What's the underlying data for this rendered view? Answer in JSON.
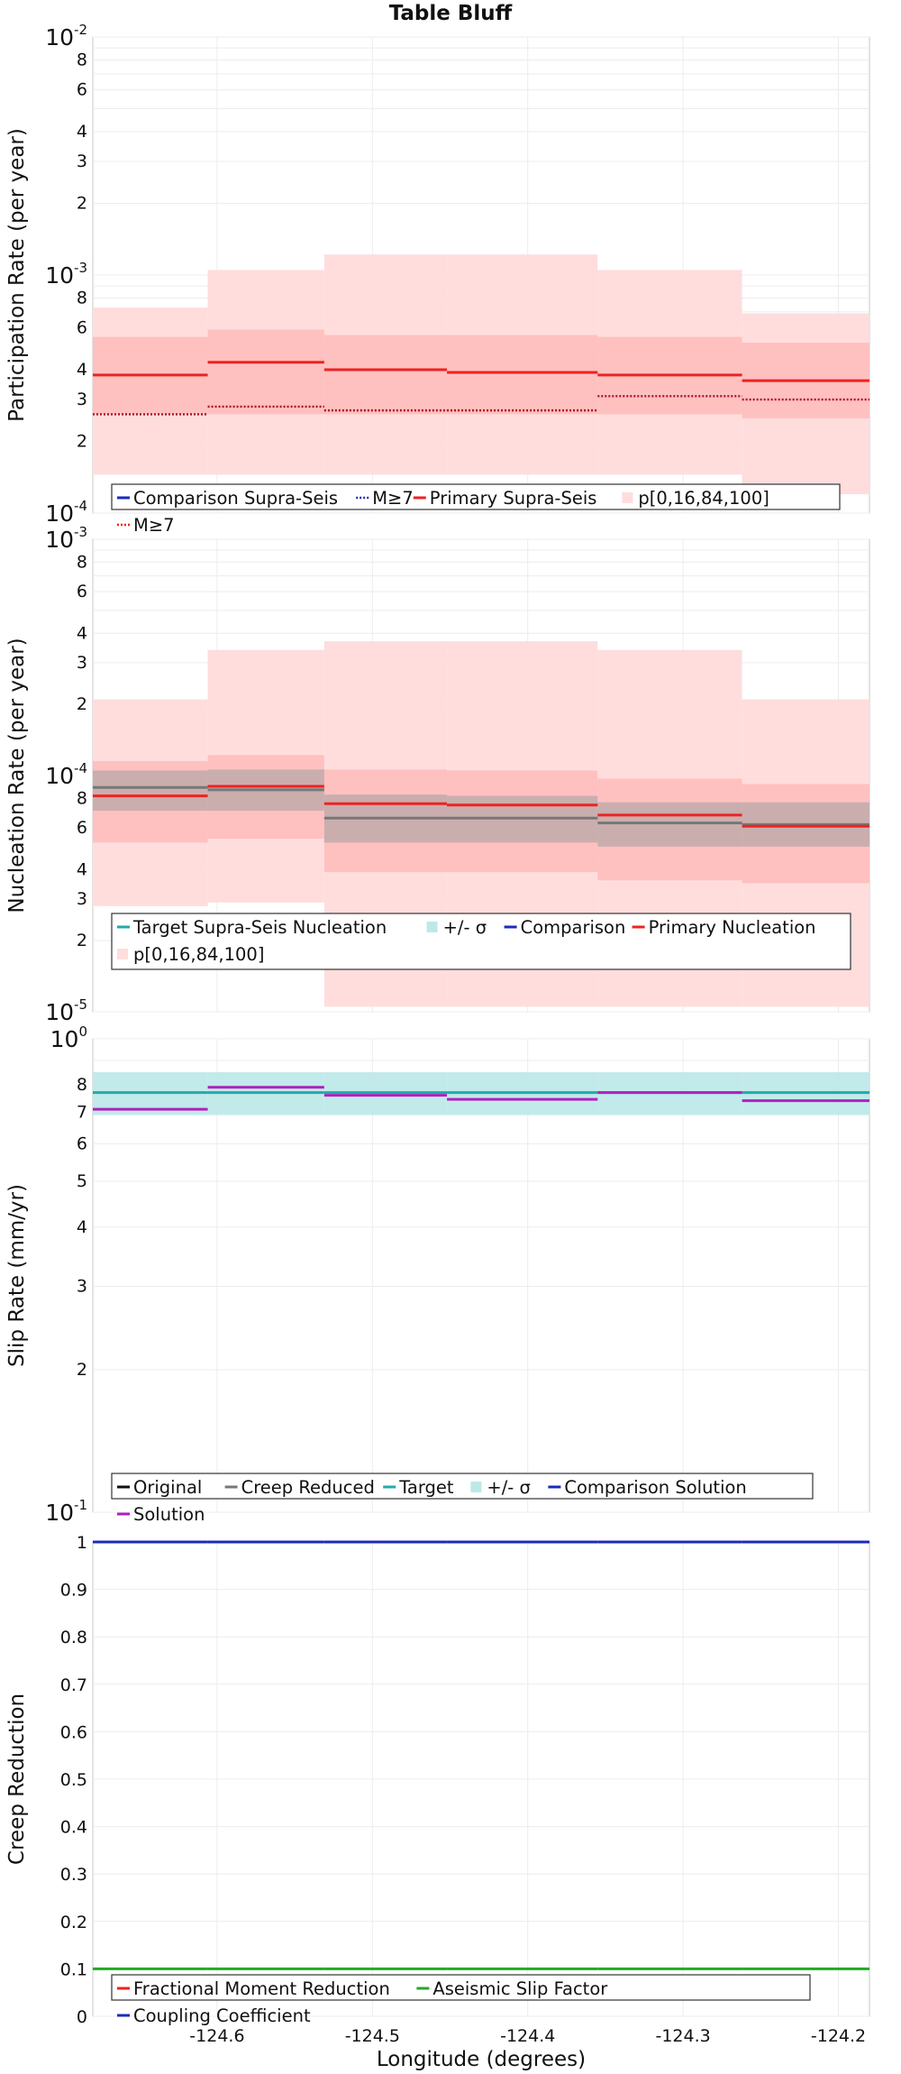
{
  "title": "Table Bluff",
  "colors": {
    "band_outer": "#ffdddd",
    "band_inner": "#ffbbbb",
    "primary": "#ee2222",
    "primary_m7": "#aa1122",
    "comparison": "#1a2bbb",
    "target": "#22aaaa",
    "target_band": "#bde8e8",
    "gray": "#777777",
    "solution": "#b020c0",
    "green": "#22aa22"
  },
  "x_axis": {
    "label": "Longitude (degrees)",
    "xlim": [
      -124.68,
      -124.18
    ],
    "ticks": [
      -124.6,
      -124.5,
      -124.4,
      -124.3,
      -124.2
    ],
    "tick_labels": [
      "-124.6",
      "-124.5",
      "-124.4",
      "-124.3",
      "-124.2"
    ]
  },
  "segment_edges": [
    -124.68,
    -124.606,
    -124.531,
    -124.452,
    -124.355,
    -124.262,
    -124.18
  ],
  "chart_data": [
    {
      "type": "line",
      "title": "Table Bluff",
      "ylabel": "Participation Rate (per year)",
      "yscale": "log",
      "ylim": [
        0.0001,
        0.01
      ],
      "y_major_labels": [
        {
          "mant": "10",
          "exp": "-2"
        },
        {
          "mant": "10",
          "exp": "-3"
        },
        {
          "mant": "10",
          "exp": "-4"
        }
      ],
      "y_minor_labels": [
        "8",
        "6",
        "4",
        "3",
        "2"
      ],
      "bands": [
        {
          "name": "p[0,16,84,100]",
          "kind": "outer",
          "lower": [
            0.000145,
            0.000145,
            0.000145,
            0.000145,
            0.000145,
            0.00012
          ],
          "upper": [
            0.00073,
            0.00105,
            0.00122,
            0.00122,
            0.00105,
            0.00069
          ]
        },
        {
          "name": "p[0,16,84,100]",
          "kind": "inner",
          "lower": [
            0.00026,
            0.00026,
            0.00026,
            0.00026,
            0.00026,
            0.00025
          ],
          "upper": [
            0.00055,
            0.00059,
            0.00056,
            0.00056,
            0.00055,
            0.00052
          ]
        }
      ],
      "series": [
        {
          "name": "Primary Supra-Seis",
          "style": "solid",
          "color_key": "primary",
          "values": [
            0.00038,
            0.00043,
            0.0004,
            0.00039,
            0.00038,
            0.00036
          ]
        },
        {
          "name": "M≥7",
          "style": "dotted",
          "color_key": "primary_m7",
          "values": [
            0.00026,
            0.00028,
            0.00027,
            0.00027,
            0.00031,
            0.0003
          ]
        }
      ],
      "legend": [
        {
          "label": "Comparison Supra-Seis",
          "swatch": "line",
          "color_key": "comparison"
        },
        {
          "label": "M≥7",
          "swatch": "dotted",
          "color_key": "comparison"
        },
        {
          "label": "Primary Supra-Seis",
          "swatch": "line",
          "color_key": "primary"
        },
        {
          "label": "p[0,16,84,100]",
          "swatch": "box",
          "color_key": "band_outer"
        },
        {
          "label": "M≥7",
          "swatch": "dotted",
          "color_key": "primary"
        }
      ]
    },
    {
      "type": "line",
      "ylabel": "Nucleation Rate (per year)",
      "yscale": "log",
      "ylim": [
        1e-05,
        0.001
      ],
      "y_major_labels": [
        {
          "mant": "10",
          "exp": "-3"
        },
        {
          "mant": "10",
          "exp": "-4"
        },
        {
          "mant": "10",
          "exp": "-5"
        }
      ],
      "y_minor_labels": [
        "8",
        "6",
        "4",
        "3",
        "2"
      ],
      "bands": [
        {
          "name": "p[0,16,84,100]",
          "kind": "outer",
          "lower": [
            2.8e-05,
            2.9e-05,
            1.05e-05,
            1.05e-05,
            1.05e-05,
            1.05e-05
          ],
          "upper": [
            0.00021,
            0.00034,
            0.00037,
            0.00037,
            0.00034,
            0.00021
          ]
        },
        {
          "name": "p[0,16,84,100]",
          "kind": "inner",
          "lower": [
            5.2e-05,
            5.4e-05,
            3.9e-05,
            3.9e-05,
            3.6e-05,
            3.5e-05
          ],
          "upper": [
            0.000115,
            0.000122,
            0.000106,
            0.000105,
            9.7e-05,
            9.2e-05
          ]
        },
        {
          "name": "+/- σ",
          "kind": "gray",
          "lower": [
            7.1e-05,
            7.1e-05,
            5.2e-05,
            5.2e-05,
            5e-05,
            5e-05
          ],
          "upper": [
            0.000105,
            0.000106,
            8.3e-05,
            8.2e-05,
            7.7e-05,
            7.7e-05
          ]
        }
      ],
      "series": [
        {
          "name": "Target Supra-Seis Nucleation",
          "style": "solid",
          "color_key": "gray",
          "values": [
            8.9e-05,
            8.7e-05,
            6.6e-05,
            6.6e-05,
            6.3e-05,
            6.2e-05
          ]
        },
        {
          "name": "Primary Nucleation",
          "style": "solid",
          "color_key": "primary",
          "values": [
            8.2e-05,
            9e-05,
            7.6e-05,
            7.5e-05,
            6.8e-05,
            6.1e-05
          ]
        }
      ],
      "legend": [
        {
          "label": "Target Supra-Seis Nucleation",
          "swatch": "line",
          "color_key": "target"
        },
        {
          "label": "+/- σ",
          "swatch": "box",
          "color_key": "target_band"
        },
        {
          "label": "Comparison",
          "swatch": "line",
          "color_key": "comparison"
        },
        {
          "label": "Primary Nucleation",
          "swatch": "line",
          "color_key": "primary"
        },
        {
          "label": "p[0,16,84,100]",
          "swatch": "box",
          "color_key": "band_outer"
        }
      ]
    },
    {
      "type": "line",
      "ylabel": "Slip Rate (mm/yr)",
      "yscale": "log",
      "ylim": [
        0.1,
        1
      ],
      "y_major_labels": [
        {
          "mant": "10",
          "exp": "0"
        },
        {
          "mant": "10",
          "exp": "-1"
        }
      ],
      "y_minor_labels": [
        "8",
        "7",
        "6",
        "5",
        "4",
        "3",
        "2"
      ],
      "bands": [
        {
          "name": "+/- σ",
          "kind": "target",
          "lower": [
            0.69,
            0.69,
            0.69,
            0.69,
            0.69,
            0.69
          ],
          "upper": [
            0.85,
            0.85,
            0.85,
            0.85,
            0.85,
            0.85
          ]
        }
      ],
      "series": [
        {
          "name": "Target",
          "style": "solid",
          "color_key": "target",
          "values": [
            0.77,
            0.77,
            0.77,
            0.77,
            0.77,
            0.77
          ]
        },
        {
          "name": "Solution",
          "style": "solid",
          "color_key": "solution",
          "values": [
            0.71,
            0.79,
            0.76,
            0.745,
            0.77,
            0.74
          ]
        }
      ],
      "legend": [
        {
          "label": "Original",
          "swatch": "line",
          "color_key": "black"
        },
        {
          "label": "Creep Reduced",
          "swatch": "line",
          "color_key": "gray"
        },
        {
          "label": "Target",
          "swatch": "line",
          "color_key": "target"
        },
        {
          "label": "+/- σ",
          "swatch": "box",
          "color_key": "target_band"
        },
        {
          "label": "Comparison Solution",
          "swatch": "line",
          "color_key": "comparison"
        },
        {
          "label": "Solution",
          "swatch": "line",
          "color_key": "solution"
        }
      ]
    },
    {
      "type": "line",
      "ylabel": "Creep Reduction",
      "yscale": "linear",
      "ylim": [
        0,
        1
      ],
      "y_ticks": [
        0,
        0.1,
        0.2,
        0.3,
        0.4,
        0.5,
        0.6,
        0.7,
        0.8,
        0.9,
        1
      ],
      "y_tick_labels": [
        "0",
        "0.1",
        "0.2",
        "0.3",
        "0.4",
        "0.5",
        "0.6",
        "0.7",
        "0.8",
        "0.9",
        "1"
      ],
      "bands": [],
      "series": [
        {
          "name": "Coupling Coefficient",
          "style": "solid",
          "color_key": "comparison",
          "values": [
            1,
            1,
            1,
            1,
            1,
            1
          ]
        },
        {
          "name": "Aseismic Slip Factor",
          "style": "solid",
          "color_key": "green",
          "values": [
            0.1,
            0.1,
            0.1,
            0.1,
            0.1,
            0.1
          ]
        }
      ],
      "legend": [
        {
          "label": "Fractional Moment Reduction",
          "swatch": "line",
          "color_key": "primary"
        },
        {
          "label": "Aseismic Slip Factor",
          "swatch": "line",
          "color_key": "green"
        },
        {
          "label": "Coupling Coefficient",
          "swatch": "line",
          "color_key": "comparison"
        }
      ]
    }
  ]
}
